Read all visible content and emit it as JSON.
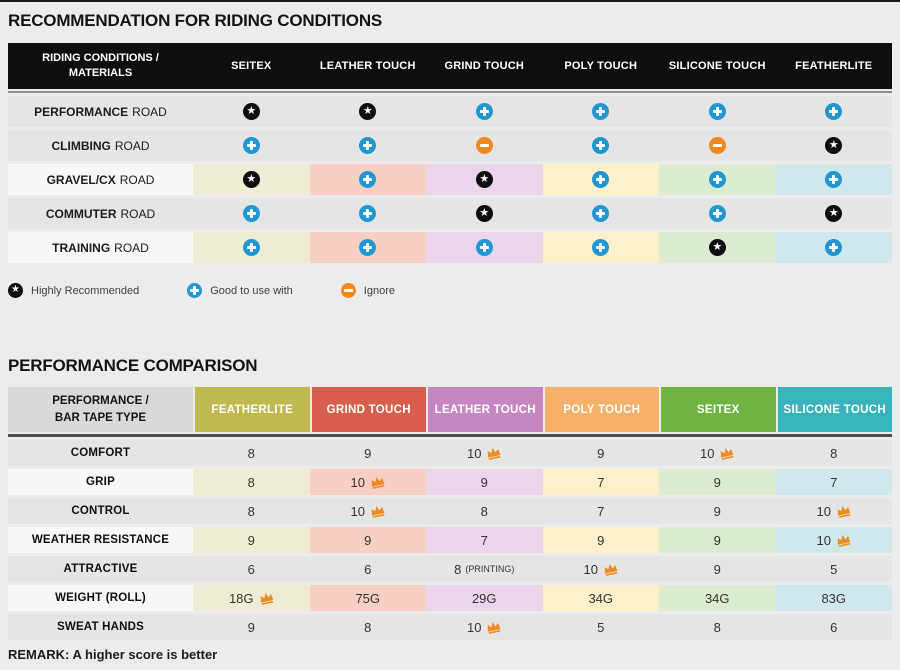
{
  "colors": {
    "page_background": "#ececec",
    "top_border": "#1a1a1a",
    "table1_header_bg": "#0e0e0e",
    "gray_row_bg": "#e5e5e5",
    "white_row_bg": "#f8f8f8",
    "icon_star_bg": "#0e0e0e",
    "icon_plus_bg": "#2196d3",
    "icon_minus_bg": "#f0891f",
    "crown": "#ef8b21",
    "light_cells_by_column": [
      "#eeecd2",
      "#f7d0c3",
      "#ecd4ea",
      "#fdf0cb",
      "#dcecd1",
      "#cfe8eb"
    ]
  },
  "chart_data": [
    {
      "type": "table",
      "title": "RECOMMENDATION FOR RIDING CONDITIONS",
      "first_column_header": [
        "RIDING CONDITIONS /",
        "MATERIALS"
      ],
      "columns": [
        "SEITEX",
        "LEATHER TOUCH",
        "GRIND TOUCH",
        "POLY TOUCH",
        "SILICONE TOUCH",
        "FEATHERLITE"
      ],
      "rows": [
        {
          "label_bold": "PERFORMANCE",
          "label_rest": "ROAD",
          "colored_bg": false,
          "icons": [
            "star",
            "star",
            "plus",
            "plus",
            "plus",
            "plus"
          ]
        },
        {
          "label_bold": "CLIMBING",
          "label_rest": "ROAD",
          "colored_bg": false,
          "icons": [
            "plus",
            "plus",
            "minus",
            "plus",
            "minus",
            "star"
          ]
        },
        {
          "label_bold": "GRAVEL/CX",
          "label_rest": "ROAD",
          "colored_bg": true,
          "icons": [
            "star",
            "plus",
            "star",
            "plus",
            "plus",
            "plus"
          ]
        },
        {
          "label_bold": "COMMUTER",
          "label_rest": "ROAD",
          "colored_bg": false,
          "icons": [
            "plus",
            "plus",
            "star",
            "plus",
            "plus",
            "star"
          ]
        },
        {
          "label_bold": "TRAINING",
          "label_rest": "ROAD",
          "colored_bg": true,
          "icons": [
            "plus",
            "plus",
            "plus",
            "plus",
            "star",
            "plus"
          ]
        }
      ],
      "legend": [
        {
          "icon": "star",
          "label": "Highly Recommended"
        },
        {
          "icon": "plus",
          "label": "Good to use with"
        },
        {
          "icon": "minus",
          "label": "Ignore"
        }
      ]
    },
    {
      "type": "table",
      "title": "PERFORMANCE COMPARISON",
      "first_column_header": [
        "PERFORMANCE /",
        "BAR TAPE TYPE"
      ],
      "columns": [
        {
          "label": "FEATHERLITE",
          "color": "#bfb94e"
        },
        {
          "label": "GRIND TOUCH",
          "color": "#d75f4b"
        },
        {
          "label": "LEATHER TOUCH",
          "color": "#c686c2"
        },
        {
          "label": "POLY TOUCH",
          "color": "#f5b167"
        },
        {
          "label": "SEITEX",
          "color": "#6fb440"
        },
        {
          "label": "SILICONE TOUCH",
          "color": "#39b3bc"
        }
      ],
      "rows": [
        {
          "label": "COMFORT",
          "colored_bg": false,
          "cells": [
            {
              "value": "8"
            },
            {
              "value": "9"
            },
            {
              "value": "10",
              "crown": true
            },
            {
              "value": "9"
            },
            {
              "value": "10",
              "crown": true
            },
            {
              "value": "8"
            }
          ]
        },
        {
          "label": "GRIP",
          "colored_bg": true,
          "cells": [
            {
              "value": "8"
            },
            {
              "value": "10",
              "crown": true
            },
            {
              "value": "9"
            },
            {
              "value": "7"
            },
            {
              "value": "9"
            },
            {
              "value": "7"
            }
          ]
        },
        {
          "label": "CONTROL",
          "colored_bg": false,
          "cells": [
            {
              "value": "8"
            },
            {
              "value": "10",
              "crown": true
            },
            {
              "value": "8"
            },
            {
              "value": "7"
            },
            {
              "value": "9"
            },
            {
              "value": "10",
              "crown": true
            }
          ]
        },
        {
          "label": "WEATHER RESISTANCE",
          "colored_bg": true,
          "cells": [
            {
              "value": "9"
            },
            {
              "value": "9"
            },
            {
              "value": "7"
            },
            {
              "value": "9"
            },
            {
              "value": "9"
            },
            {
              "value": "10",
              "crown": true
            }
          ]
        },
        {
          "label": "ATTRACTIVE",
          "colored_bg": false,
          "cells": [
            {
              "value": "6"
            },
            {
              "value": "6"
            },
            {
              "value": "8",
              "note": "(PRINTING)"
            },
            {
              "value": "10",
              "crown": true
            },
            {
              "value": "9"
            },
            {
              "value": "5"
            }
          ]
        },
        {
          "label": "WEIGHT (ROLL)",
          "colored_bg": true,
          "cells": [
            {
              "value": "18G",
              "crown": true
            },
            {
              "value": "75G"
            },
            {
              "value": "29G"
            },
            {
              "value": "34G"
            },
            {
              "value": "34G"
            },
            {
              "value": "83G"
            }
          ]
        },
        {
          "label": "SWEAT HANDS",
          "colored_bg": false,
          "cells": [
            {
              "value": "9"
            },
            {
              "value": "8"
            },
            {
              "value": "10",
              "crown": true
            },
            {
              "value": "5"
            },
            {
              "value": "8"
            },
            {
              "value": "6"
            }
          ]
        }
      ],
      "remark": "REMARK: A higher score is better"
    }
  ]
}
